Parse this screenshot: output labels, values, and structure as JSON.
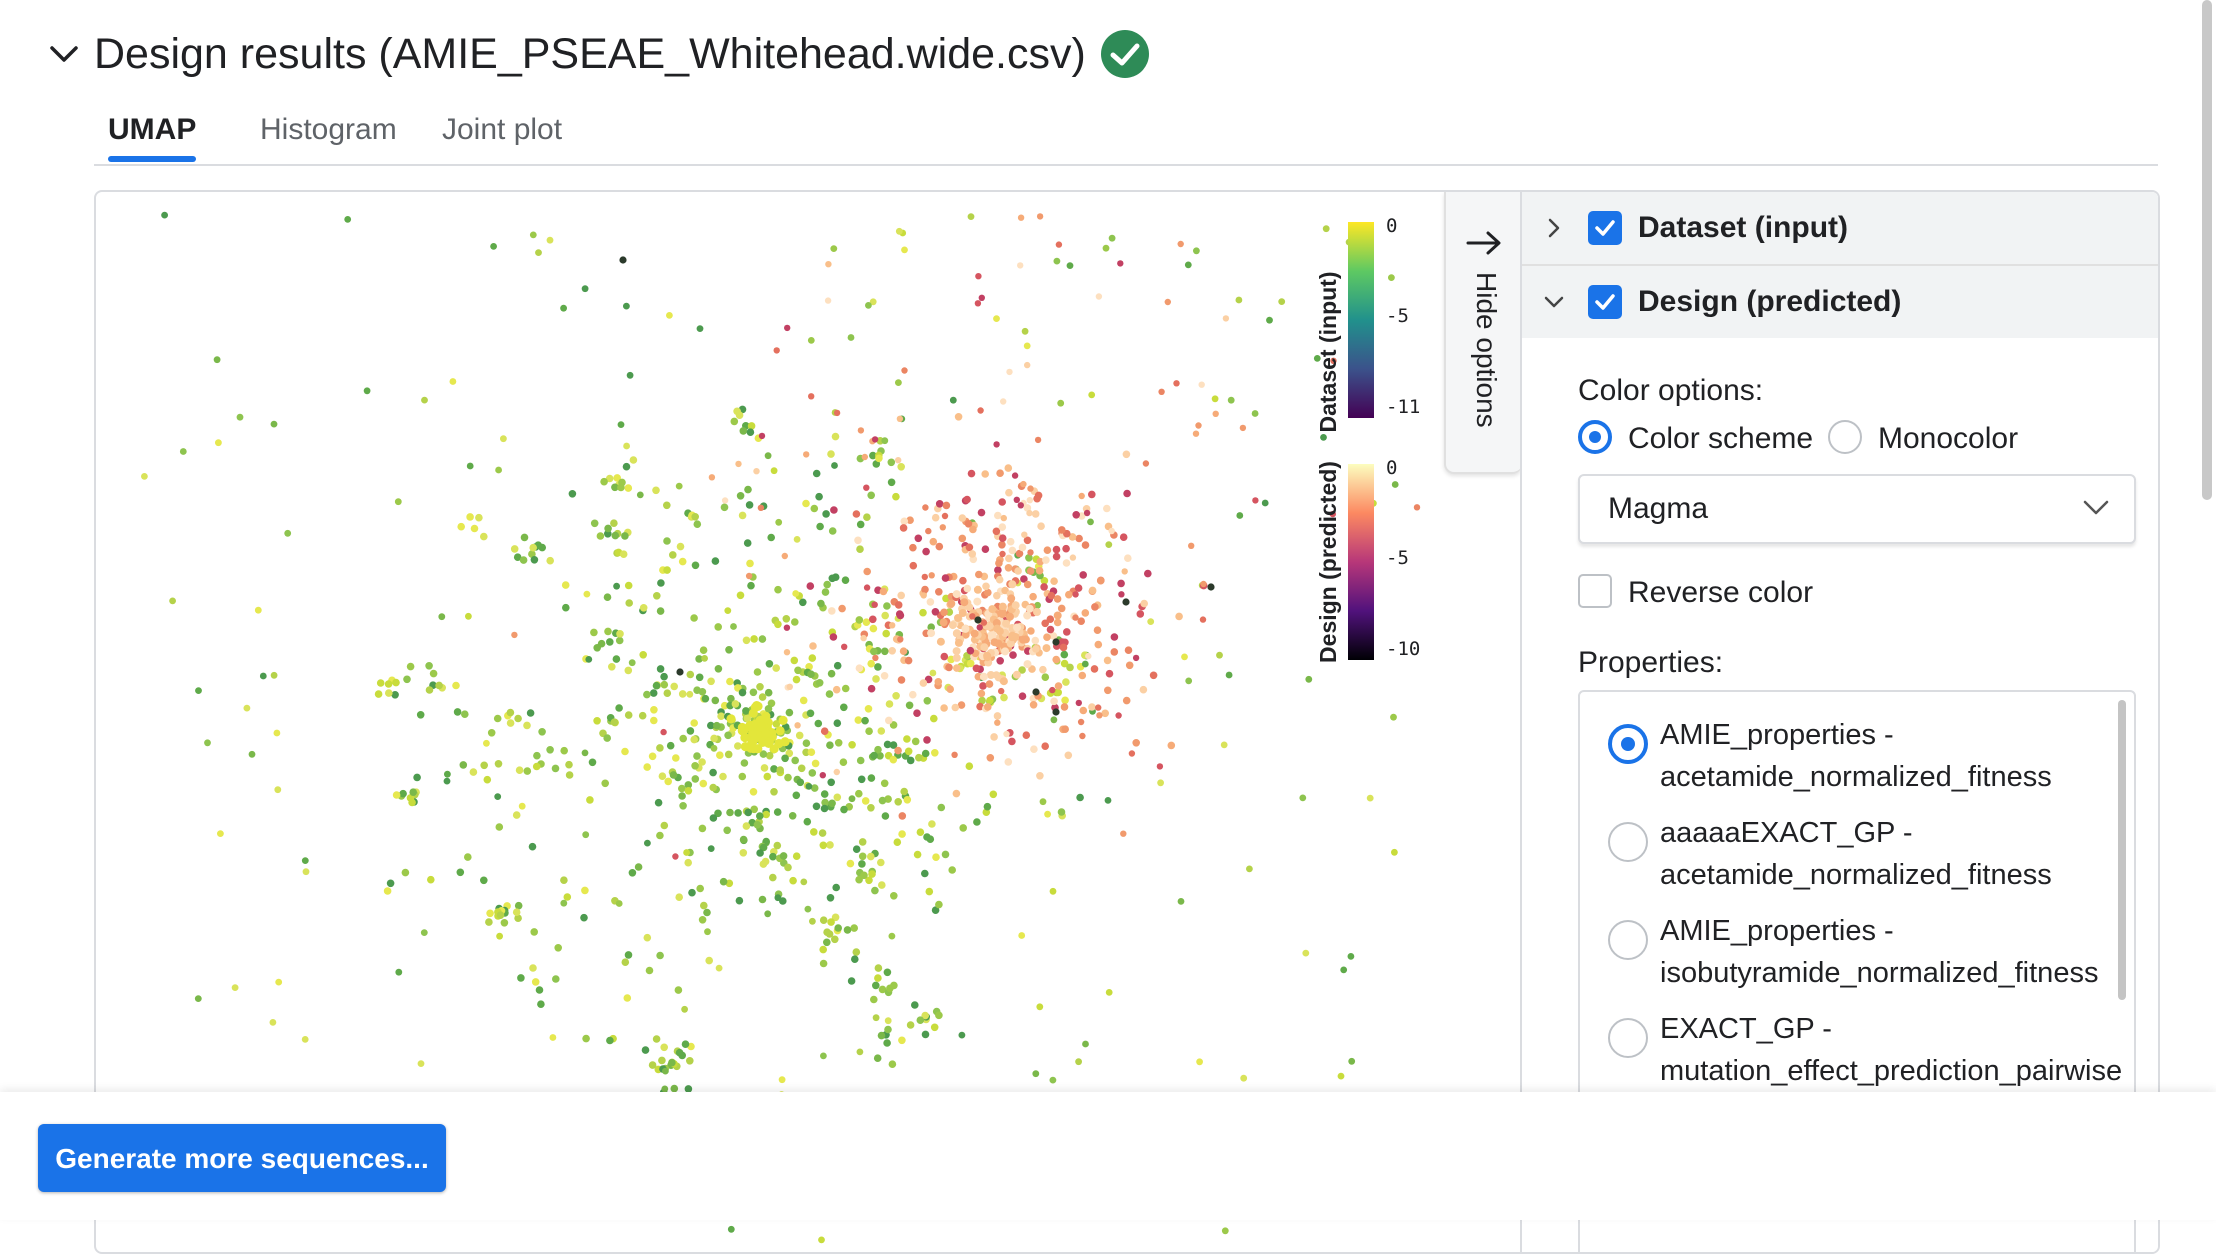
{
  "section": {
    "title": "Design results (AMIE_PSEAE_Whitehead.wide.csv)"
  },
  "tabs": [
    {
      "label": "UMAP",
      "active": true
    },
    {
      "label": "Histogram",
      "active": false
    },
    {
      "label": "Joint plot",
      "active": false
    }
  ],
  "hide_options_label": "Hide options",
  "colorbars": [
    {
      "title": "Dataset (input)",
      "ticks": [
        "0",
        "-5",
        "-11"
      ]
    },
    {
      "title": "Design (predicted)",
      "ticks": [
        "0",
        "-5",
        "-10"
      ]
    }
  ],
  "options": {
    "dataset_label": "Dataset (input)",
    "dataset_checked": true,
    "design_label": "Design (predicted)",
    "design_checked": true,
    "color_options_label": "Color options:",
    "color_scheme_label": "Color scheme",
    "monocolor_label": "Monocolor",
    "selected_mode": "Color scheme",
    "palette": "Magma",
    "reverse_color_label": "Reverse color",
    "reverse_color_checked": false,
    "properties_label": "Properties:",
    "properties": [
      {
        "line1": "AMIE_properties -",
        "line2": "acetamide_normalized_fitness",
        "selected": true
      },
      {
        "line1": "aaaaaEXACT_GP -",
        "line2": "acetamide_normalized_fitness",
        "selected": false
      },
      {
        "line1": "AMIE_properties -",
        "line2": "isobutyramide_normalized_fitness",
        "selected": false
      },
      {
        "line1": "EXACT_GP -",
        "line2": "mutation_effect_prediction_pairwise",
        "selected": false
      }
    ]
  },
  "footer": {
    "button_label": "Generate more sequences..."
  },
  "colors": {
    "accent": "#1a73e8",
    "success": "#2e8b57"
  },
  "chart_data": {
    "type": "scatter",
    "xlabel": "",
    "ylabel": "",
    "series": [
      {
        "name": "Dataset (input)",
        "colormap": "viridis",
        "range": [
          -11,
          0
        ],
        "points_shown": 900
      },
      {
        "name": "Design (predicted)",
        "colormap": "magma",
        "range": [
          -10,
          0
        ],
        "points_shown": 400
      }
    ]
  }
}
